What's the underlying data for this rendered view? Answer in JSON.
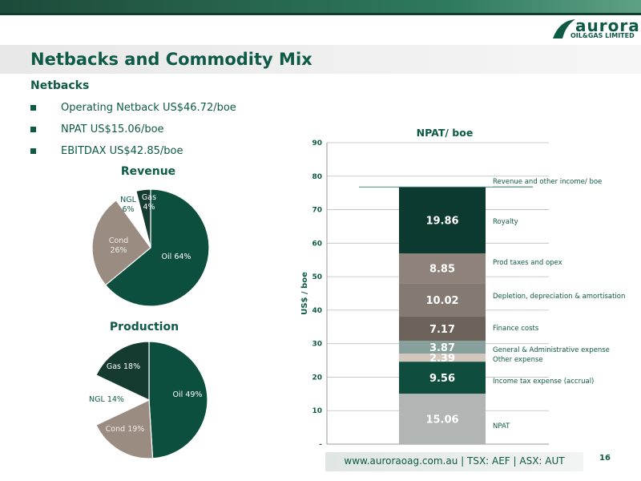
{
  "header": {
    "logo_word": "aurora",
    "logo_sub": "OIL&GAS LIMITED",
    "title": "Netbacks and Commodity Mix"
  },
  "netbacks": {
    "heading": "Netbacks",
    "items": [
      {
        "text": "Operating Netback US$46.72/boe"
      },
      {
        "text": "NPAT US$15.06/boe"
      },
      {
        "text": "EBITDAX US$42.85/boe"
      }
    ]
  },
  "colors": {
    "oil": "#0d4f3f",
    "cond": "#9a8c80",
    "ngl": "#ffffff",
    "gas": "#153b31",
    "npat": "#b1b5b3",
    "income_tax": "#0f4d3f",
    "other": "#d3c6bd",
    "ga": "#87a09c",
    "finance": "#6d625a",
    "depreciation": "#857a72",
    "prod": "#8e827a",
    "royalty": "#0c3a30",
    "brand": "#0d5a46"
  },
  "chart_data": [
    {
      "type": "pie",
      "title": "Revenue",
      "slices": [
        {
          "label": "Oil 64%",
          "value": 64,
          "color_key": "oil"
        },
        {
          "label": "Cond 26%",
          "value": 26,
          "color_key": "cond"
        },
        {
          "label": "NGL 6%",
          "value": 6,
          "color_key": "ngl"
        },
        {
          "label": "Gas 4%",
          "value": 4,
          "color_key": "gas"
        }
      ]
    },
    {
      "type": "pie",
      "title": "Production",
      "slices": [
        {
          "label": "Oil 49%",
          "value": 49,
          "color_key": "oil"
        },
        {
          "label": "Cond 19%",
          "value": 19,
          "color_key": "cond"
        },
        {
          "label": "NGL 14%",
          "value": 14,
          "color_key": "ngl"
        },
        {
          "label": "Gas 18%",
          "value": 18,
          "color_key": "gas"
        }
      ]
    },
    {
      "type": "bar",
      "title": "NPAT/ boe",
      "ylabel": "US$ / boe",
      "ylim": [
        0,
        90
      ],
      "yticks": [
        "-",
        "10",
        "20",
        "30",
        "40",
        "50",
        "60",
        "70",
        "80",
        "90"
      ],
      "grid": true,
      "stacked": true,
      "total_label": "Revenue and other income/ boe",
      "total_value": 76.78,
      "segments": [
        {
          "name": "NPAT",
          "value": 15.06,
          "label": "15.06",
          "color_key": "npat"
        },
        {
          "name": "Income tax expense (accrual)",
          "value": 9.56,
          "label": "9.56",
          "color_key": "income_tax"
        },
        {
          "name": "Other expense",
          "value": 2.39,
          "label": "2.39",
          "color_key": "other"
        },
        {
          "name": "General & Administrative expense",
          "value": 3.87,
          "label": "3.87",
          "color_key": "ga"
        },
        {
          "name": "Finance costs",
          "value": 7.17,
          "label": "7.17",
          "color_key": "finance"
        },
        {
          "name": "Depletion, depreciation & amortisation",
          "value": 10.02,
          "label": "10.02",
          "color_key": "depreciation"
        },
        {
          "name": "Prod taxes and opex",
          "value": 8.85,
          "label": "8.85",
          "color_key": "prod"
        },
        {
          "name": "Royalty",
          "value": 19.86,
          "label": "19.86",
          "color_key": "royalty"
        }
      ]
    }
  ],
  "footer": {
    "text": "www.auroraoag.com.au    |    TSX: AEF    |    ASX: AUT",
    "page": "16"
  }
}
